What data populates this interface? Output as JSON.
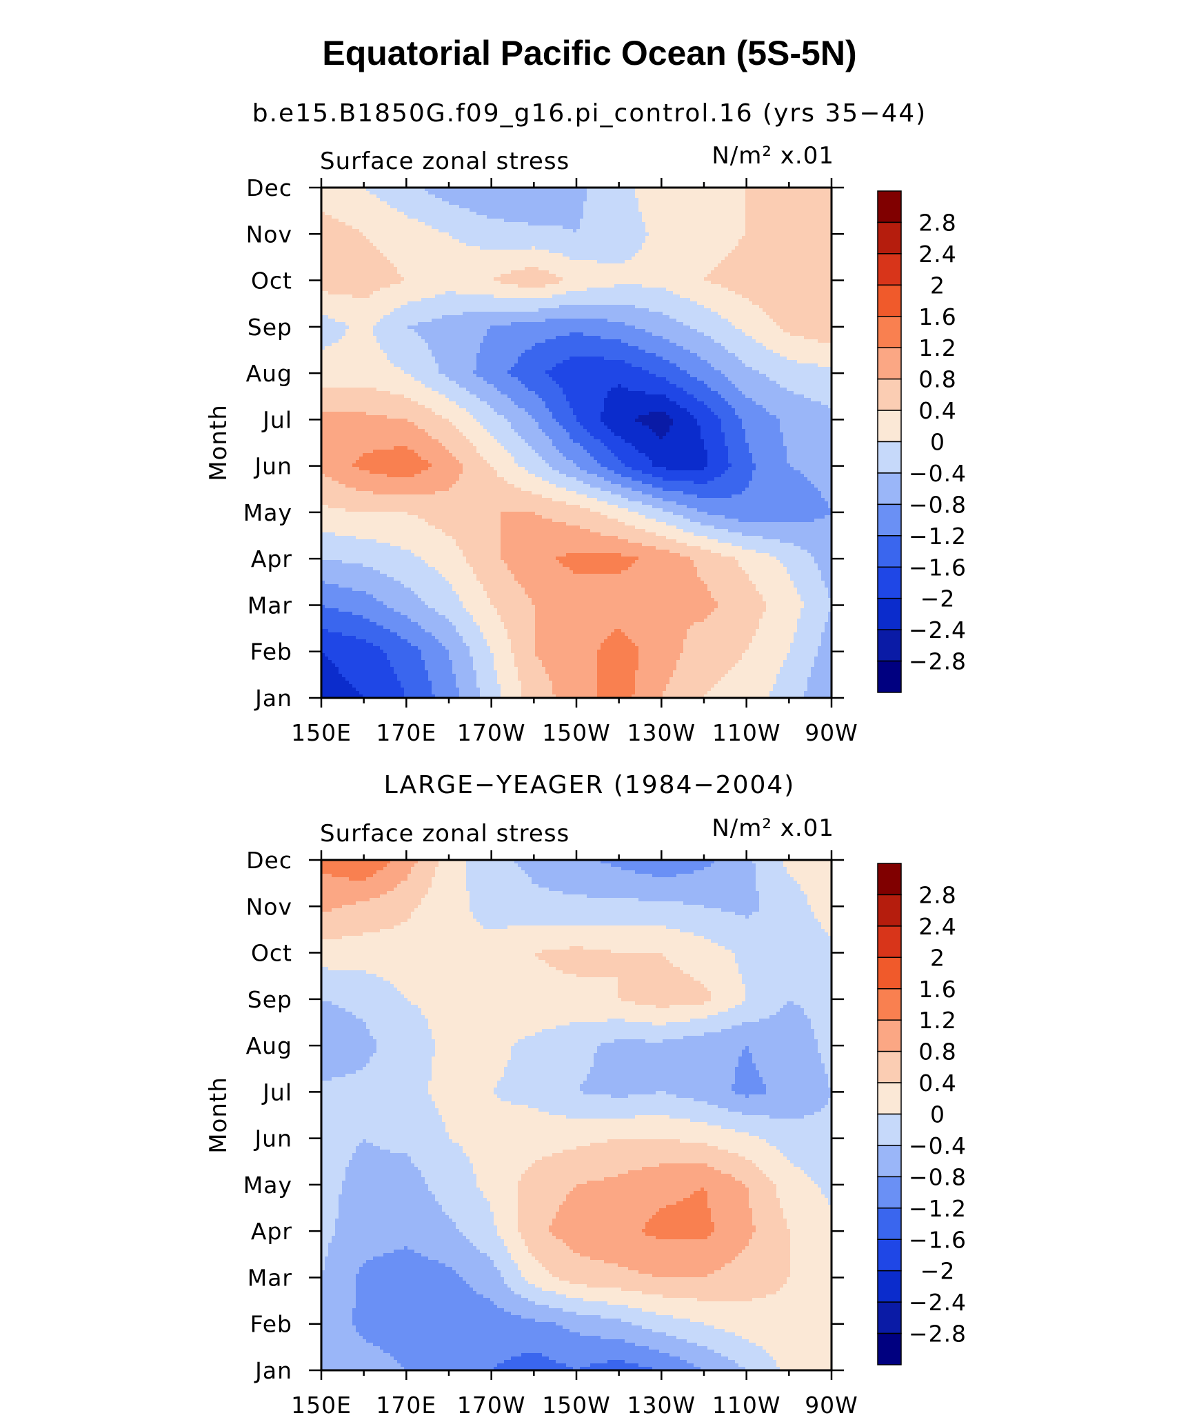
{
  "figure": {
    "title": "Equatorial Pacific Ocean (5S-5N)"
  },
  "chart_data": [
    {
      "type": "heatmap",
      "title": "b.e15.B1850G.f09_g16.pi_control.16 (yrs 35−44)",
      "left_label": "Surface zonal stress",
      "units_label": "N/m² x.01",
      "ylabel": "Month",
      "x_ticks": [
        "150E",
        "170E",
        "170W",
        "150W",
        "130W",
        "110W",
        "90W"
      ],
      "y_ticks": [
        "Jan",
        "Feb",
        "Mar",
        "Apr",
        "May",
        "Jun",
        "Jul",
        "Aug",
        "Sep",
        "Oct",
        "Nov",
        "Dec"
      ],
      "x": [
        150,
        160,
        170,
        180,
        190,
        200,
        210,
        220,
        230,
        240,
        250,
        260,
        270
      ],
      "grid": [
        [
          -2.2,
          -2.0,
          -1.6,
          -1.0,
          -0.2,
          0.6,
          1.0,
          1.4,
          0.8,
          0.4,
          0.2,
          -0.2,
          -0.8
        ],
        [
          -2.0,
          -1.8,
          -1.4,
          -0.8,
          0.0,
          0.8,
          1.0,
          1.4,
          1.0,
          0.6,
          0.4,
          0.0,
          -0.6
        ],
        [
          -1.2,
          -1.0,
          -0.6,
          -0.2,
          0.4,
          0.8,
          1.0,
          1.0,
          0.8,
          0.9,
          0.6,
          0.2,
          -0.4
        ],
        [
          -0.4,
          -0.3,
          -0.1,
          0.2,
          0.7,
          1.1,
          1.3,
          1.3,
          1.1,
          0.7,
          0.3,
          -0.1,
          -0.6
        ],
        [
          0.3,
          0.4,
          0.4,
          0.6,
          0.8,
          0.8,
          0.6,
          0.2,
          -0.3,
          -0.8,
          -1.1,
          -1.0,
          -0.8
        ],
        [
          0.9,
          1.3,
          1.5,
          1.0,
          0.4,
          -0.2,
          -0.8,
          -1.5,
          -2.1,
          -2.1,
          -1.3,
          -0.8,
          -0.7
        ],
        [
          0.9,
          0.9,
          0.8,
          0.4,
          -0.2,
          -0.8,
          -1.6,
          -2.3,
          -2.6,
          -1.9,
          -1.1,
          -0.7,
          -0.5
        ],
        [
          0.2,
          0.2,
          0.0,
          -0.5,
          -1.0,
          -1.5,
          -1.9,
          -1.9,
          -1.5,
          -1.0,
          -0.5,
          -0.2,
          -0.1
        ],
        [
          -0.2,
          0.1,
          -0.4,
          -0.6,
          -0.8,
          -1.0,
          -1.1,
          -0.9,
          -0.6,
          -0.3,
          0.1,
          0.5,
          0.7
        ],
        [
          0.6,
          0.6,
          0.4,
          0.2,
          0.4,
          0.7,
          0.3,
          0.1,
          0.1,
          0.4,
          0.6,
          0.8,
          0.8
        ],
        [
          0.6,
          0.4,
          0.2,
          0.0,
          -0.2,
          -0.3,
          -0.4,
          -0.2,
          0.1,
          0.2,
          0.4,
          0.5,
          0.6
        ],
        [
          0.2,
          0.0,
          -0.3,
          -0.6,
          -0.8,
          -0.8,
          -0.5,
          -0.1,
          0.2,
          0.2,
          0.4,
          0.4,
          0.4
        ]
      ]
    },
    {
      "type": "heatmap",
      "title": "LARGE−YEAGER (1984−2004)",
      "left_label": "Surface zonal stress",
      "units_label": "N/m² x.01",
      "ylabel": "Month",
      "x_ticks": [
        "150E",
        "170E",
        "170W",
        "150W",
        "130W",
        "110W",
        "90W"
      ],
      "y_ticks": [
        "Jan",
        "Feb",
        "Mar",
        "Apr",
        "May",
        "Jun",
        "Jul",
        "Aug",
        "Sep",
        "Oct",
        "Nov",
        "Dec"
      ],
      "x": [
        150,
        160,
        170,
        180,
        190,
        200,
        210,
        220,
        230,
        240,
        250,
        260,
        270
      ],
      "grid": [
        [
          -0.5,
          -0.6,
          -0.8,
          -1.0,
          -1.2,
          -1.4,
          -1.2,
          -1.4,
          -1.2,
          -0.8,
          -0.4,
          0.1,
          0.2
        ],
        [
          -0.5,
          -0.9,
          -1.0,
          -1.0,
          -1.0,
          -0.9,
          -0.7,
          -0.5,
          -0.2,
          0.0,
          0.2,
          0.3,
          0.3
        ],
        [
          -0.4,
          -0.9,
          -1.0,
          -0.9,
          -0.6,
          0.2,
          0.6,
          0.7,
          0.8,
          0.8,
          0.6,
          0.4,
          0.1
        ],
        [
          -0.3,
          -0.6,
          -0.7,
          -0.5,
          -0.1,
          0.7,
          1.0,
          1.1,
          1.3,
          1.3,
          0.9,
          0.4,
          0.1
        ],
        [
          -0.3,
          -0.5,
          -0.6,
          -0.2,
          0.1,
          0.6,
          0.8,
          0.9,
          1.1,
          1.2,
          0.8,
          0.2,
          -0.1
        ],
        [
          -0.3,
          -0.4,
          -0.3,
          0.0,
          0.1,
          0.2,
          0.3,
          0.4,
          0.4,
          0.3,
          0.1,
          -0.2,
          -0.3
        ],
        [
          -0.3,
          -0.3,
          -0.1,
          0.1,
          0.0,
          -0.1,
          -0.4,
          -0.5,
          -0.4,
          -0.6,
          -0.9,
          -0.7,
          -0.4
        ],
        [
          -0.7,
          -0.5,
          -0.2,
          0.1,
          0.1,
          -0.1,
          -0.3,
          -0.5,
          -0.5,
          -0.7,
          -0.8,
          -0.6,
          -0.3
        ],
        [
          -0.4,
          -0.3,
          0.0,
          0.1,
          0.2,
          0.3,
          0.3,
          0.4,
          0.6,
          0.5,
          0.0,
          -0.4,
          -0.3
        ],
        [
          0.2,
          0.2,
          0.2,
          0.0,
          0.1,
          0.4,
          0.5,
          0.4,
          0.4,
          0.2,
          -0.1,
          -0.3,
          -0.1
        ],
        [
          0.9,
          0.7,
          0.5,
          0.1,
          -0.1,
          -0.3,
          -0.3,
          -0.3,
          -0.3,
          -0.4,
          -0.5,
          -0.2,
          0.2
        ],
        [
          1.3,
          1.6,
          1.0,
          0.2,
          -0.3,
          -0.5,
          -0.7,
          -0.9,
          -1.1,
          -0.9,
          -0.5,
          0.1,
          0.2
        ]
      ]
    }
  ],
  "colorbar": {
    "labels": [
      "2.8",
      "2.4",
      "2",
      "1.6",
      "1.2",
      "0.8",
      "0.4",
      "0",
      "−0.4",
      "−0.8",
      "−1.2",
      "−1.6",
      "−2",
      "−2.4",
      "−2.8"
    ],
    "levels": [
      -2.8,
      -2.4,
      -2.0,
      -1.6,
      -1.2,
      -0.8,
      -0.4,
      0,
      0.4,
      0.8,
      1.2,
      1.6,
      2.0,
      2.4,
      2.8
    ],
    "colors": [
      "#000080",
      "#0a1ba6",
      "#0b2ccc",
      "#1f47e6",
      "#3a66ee",
      "#6a90f5",
      "#9ab6f8",
      "#c6d9fa",
      "#fbe8d6",
      "#fbcdb3",
      "#fba784",
      "#f98050",
      "#f05a2b",
      "#d8351a",
      "#b51d0d",
      "#800000"
    ]
  }
}
